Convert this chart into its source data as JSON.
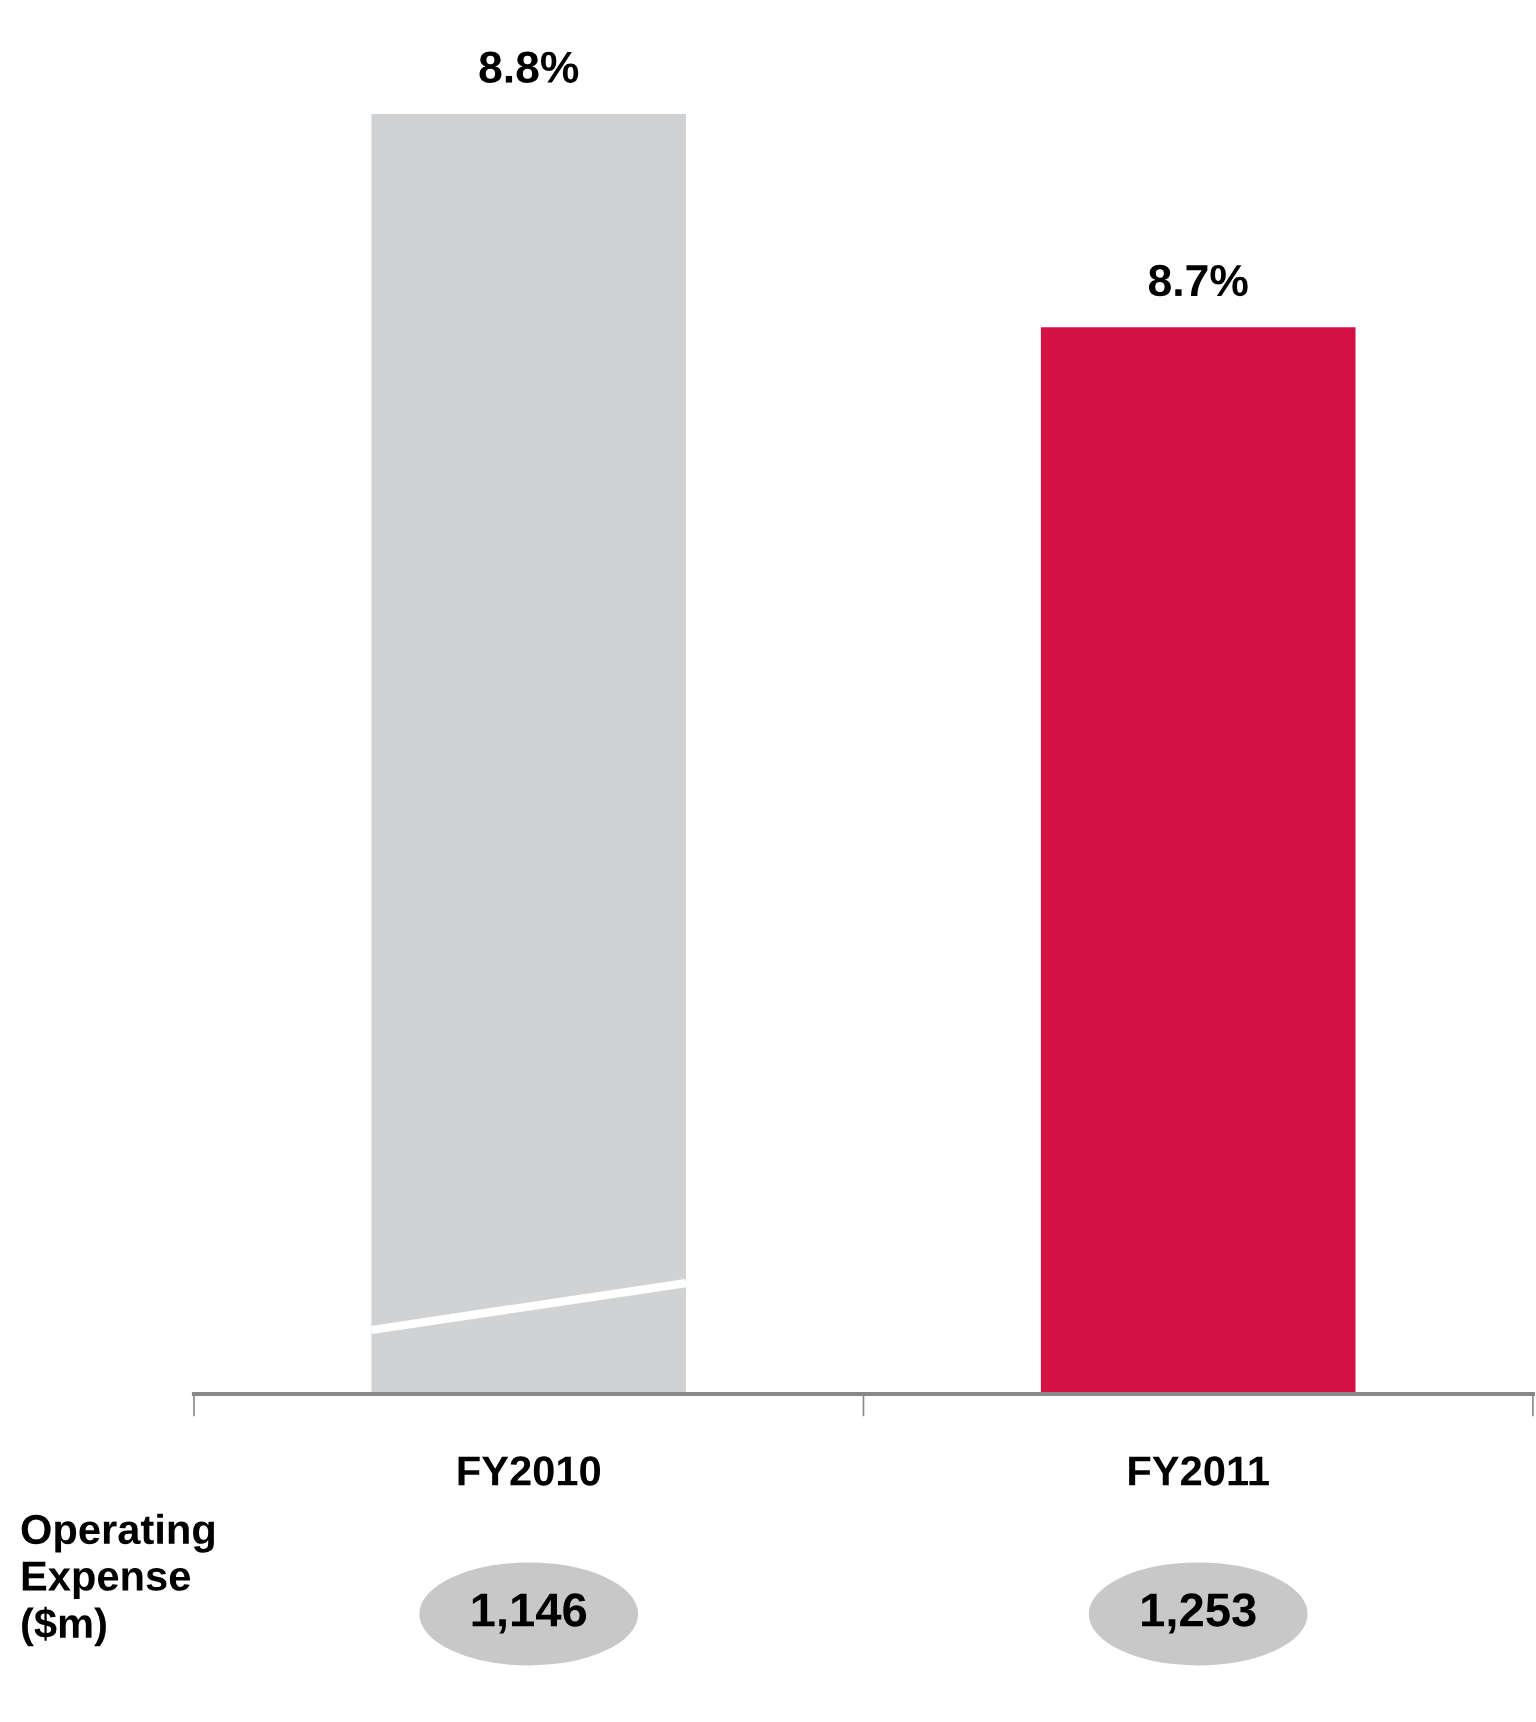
{
  "chart_data": {
    "type": "bar",
    "categories": [
      "FY2010",
      "FY2011"
    ],
    "values": [
      8.8,
      8.7
    ],
    "value_labels": [
      "8.8%",
      "8.7%"
    ],
    "colors": [
      "#d1d2d4",
      "#d31145"
    ],
    "ylim": [
      8.2,
      8.8
    ],
    "tick_labels": "x",
    "grid": false,
    "annotations": [
      "Operating\nExpense\n($m)",
      "1,146",
      "1,253"
    ]
  }
}
